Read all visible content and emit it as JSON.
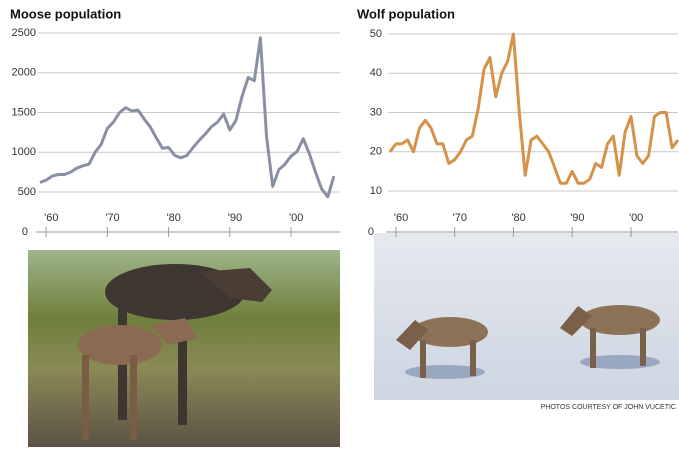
{
  "chart_data": [
    {
      "type": "line",
      "title": "Moose population",
      "color": "#8a90a3",
      "grid": true,
      "x": [
        1959,
        1960,
        1961,
        1962,
        1963,
        1964,
        1965,
        1966,
        1967,
        1968,
        1969,
        1970,
        1971,
        1972,
        1973,
        1974,
        1975,
        1976,
        1977,
        1978,
        1979,
        1980,
        1981,
        1982,
        1983,
        1984,
        1985,
        1986,
        1987,
        1988,
        1989,
        1990,
        1991,
        1992,
        1993,
        1994,
        1995,
        1996,
        1997,
        1998,
        1999,
        2000,
        2001,
        2002,
        2003,
        2004,
        2005,
        2006,
        2007
      ],
      "values": [
        620,
        650,
        700,
        720,
        720,
        750,
        800,
        830,
        850,
        1000,
        1100,
        1300,
        1380,
        1500,
        1560,
        1520,
        1530,
        1420,
        1320,
        1180,
        1050,
        1060,
        960,
        930,
        960,
        1060,
        1150,
        1230,
        1320,
        1380,
        1480,
        1280,
        1400,
        1700,
        1940,
        1900,
        2440,
        1200,
        570,
        780,
        850,
        950,
        1010,
        1170,
        980,
        750,
        540,
        440,
        700
      ],
      "xlim": [
        1959,
        2008
      ],
      "ylim": [
        500,
        2500
      ],
      "yticks": [
        500,
        1000,
        1500,
        2000,
        2500
      ],
      "axis_zero": 0,
      "xticks": [
        {
          "value": 1960,
          "label": "'60"
        },
        {
          "value": 1970,
          "label": "'70"
        },
        {
          "value": 1980,
          "label": "'80"
        },
        {
          "value": 1990,
          "label": "'90"
        },
        {
          "value": 2000,
          "label": "'00"
        }
      ]
    },
    {
      "type": "line",
      "title": "Wolf population",
      "color": "#d4924a",
      "grid": true,
      "x": [
        1959,
        1960,
        1961,
        1962,
        1963,
        1964,
        1965,
        1966,
        1967,
        1968,
        1969,
        1970,
        1971,
        1972,
        1973,
        1974,
        1975,
        1976,
        1977,
        1978,
        1979,
        1980,
        1981,
        1982,
        1983,
        1984,
        1985,
        1986,
        1987,
        1988,
        1989,
        1990,
        1991,
        1992,
        1993,
        1994,
        1995,
        1996,
        1997,
        1998,
        1999,
        2000,
        2001,
        2002,
        2003,
        2004,
        2005,
        2006,
        2007,
        2008
      ],
      "values": [
        20,
        22,
        22,
        23,
        20,
        26,
        28,
        26,
        22,
        22,
        17,
        18,
        20,
        23,
        24,
        31,
        41,
        44,
        34,
        40,
        43,
        50,
        30,
        14,
        23,
        24,
        22,
        20,
        16,
        12,
        12,
        15,
        12,
        12,
        13,
        17,
        16,
        22,
        24,
        14,
        25,
        29,
        19,
        17,
        19,
        29,
        30,
        30,
        21,
        23
      ],
      "xlim": [
        1959,
        2008
      ],
      "ylim": [
        10,
        50
      ],
      "yticks": [
        10,
        20,
        30,
        40,
        50
      ],
      "axis_zero": 0,
      "xticks": [
        {
          "value": 1960,
          "label": "'60"
        },
        {
          "value": 1970,
          "label": "'70"
        },
        {
          "value": 1980,
          "label": "'80"
        },
        {
          "value": 1990,
          "label": "'90"
        },
        {
          "value": 2000,
          "label": "'00"
        }
      ]
    }
  ],
  "credit": "PHOTOS COURTESY OF JOHN VUCETIC"
}
